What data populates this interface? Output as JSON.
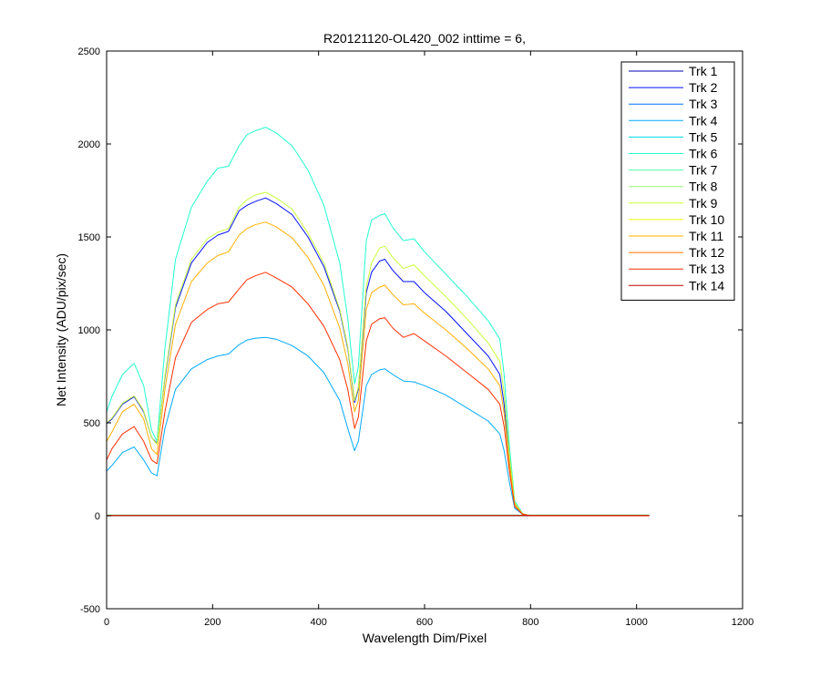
{
  "chart_data": {
    "type": "line",
    "title": "R20121120-OL420_002 inttime = 6,",
    "xlabel": "Wavelength Dim/Pixel",
    "ylabel": "Net Intensity (ADU/pix/sec)",
    "xlim": [
      0,
      1200
    ],
    "ylim": [
      -500,
      2500
    ],
    "xticks": [
      0,
      200,
      400,
      600,
      800,
      1000,
      1200
    ],
    "yticks": [
      -500,
      0,
      500,
      1000,
      1500,
      2000,
      2500
    ],
    "grid": false,
    "legend_position": "top-right",
    "series": [
      {
        "name": "Trk 1",
        "color": "#0000b8",
        "x": [
          0,
          1024
        ],
        "y": [
          0,
          0
        ]
      },
      {
        "name": "Trk 2",
        "color": "#0010ff",
        "x": [
          0,
          10,
          30,
          52,
          70,
          85,
          95,
          110,
          130,
          160,
          190,
          210,
          230,
          250,
          265,
          280,
          300,
          320,
          350,
          380,
          410,
          440,
          455,
          468,
          475,
          490,
          500,
          515,
          525,
          540,
          560,
          580,
          600,
          640,
          680,
          720,
          742,
          750,
          760,
          770,
          785,
          800,
          1024
        ],
        "y": [
          495,
          520,
          600,
          640,
          560,
          420,
          390,
          740,
          1120,
          1360,
          1470,
          1510,
          1530,
          1640,
          1670,
          1690,
          1710,
          1680,
          1620,
          1500,
          1340,
          1100,
          900,
          610,
          680,
          1200,
          1310,
          1370,
          1380,
          1320,
          1260,
          1260,
          1200,
          1100,
          980,
          860,
          760,
          600,
          300,
          60,
          10,
          0,
          0
        ]
      },
      {
        "name": "Trk 3",
        "color": "#0070ff",
        "x": [
          0,
          1024
        ],
        "y": [
          2,
          2
        ]
      },
      {
        "name": "Trk 4",
        "color": "#00aaff",
        "x": [
          0,
          10,
          30,
          52,
          70,
          85,
          95,
          110,
          130,
          160,
          190,
          210,
          230,
          250,
          265,
          280,
          300,
          320,
          350,
          380,
          410,
          440,
          455,
          468,
          475,
          490,
          500,
          515,
          525,
          540,
          560,
          580,
          600,
          640,
          680,
          720,
          742,
          750,
          760,
          770,
          785,
          800,
          1024
        ],
        "y": [
          240,
          270,
          340,
          370,
          300,
          230,
          215,
          470,
          680,
          790,
          840,
          860,
          870,
          920,
          945,
          955,
          960,
          950,
          915,
          860,
          770,
          620,
          470,
          350,
          400,
          700,
          760,
          785,
          790,
          760,
          725,
          720,
          700,
          650,
          580,
          510,
          440,
          350,
          180,
          40,
          8,
          0,
          0
        ]
      },
      {
        "name": "Trk 5",
        "color": "#00d8e8",
        "x": [
          0,
          1024
        ],
        "y": [
          3,
          3
        ]
      },
      {
        "name": "Trk 6",
        "color": "#20ffd0",
        "x": [
          0,
          10,
          30,
          52,
          70,
          85,
          95,
          110,
          130,
          160,
          190,
          210,
          230,
          250,
          265,
          280,
          300,
          320,
          350,
          380,
          410,
          440,
          455,
          468,
          475,
          490,
          500,
          515,
          525,
          540,
          560,
          580,
          600,
          640,
          680,
          720,
          742,
          750,
          760,
          770,
          785,
          800,
          1024
        ],
        "y": [
          560,
          640,
          760,
          820,
          700,
          460,
          400,
          900,
          1380,
          1660,
          1800,
          1870,
          1880,
          1990,
          2050,
          2070,
          2090,
          2060,
          1990,
          1860,
          1670,
          1360,
          1060,
          710,
          800,
          1480,
          1590,
          1615,
          1625,
          1550,
          1480,
          1490,
          1420,
          1300,
          1180,
          1050,
          950,
          760,
          380,
          80,
          12,
          0,
          0
        ]
      },
      {
        "name": "Trk 7",
        "color": "#50ffa8",
        "x": [
          0,
          1024
        ],
        "y": [
          4,
          4
        ]
      },
      {
        "name": "Trk 8",
        "color": "#90ff70",
        "x": [
          0,
          1024
        ],
        "y": [
          3,
          3
        ]
      },
      {
        "name": "Trk 9",
        "color": "#c8ff38",
        "x": [
          0,
          10,
          30,
          52,
          70,
          85,
          95,
          110,
          130,
          160,
          190,
          210,
          230,
          250,
          265,
          280,
          300,
          320,
          350,
          380,
          410,
          440,
          455,
          468,
          475,
          490,
          500,
          515,
          525,
          540,
          560,
          580,
          600,
          640,
          680,
          720,
          742,
          750,
          760,
          770,
          785,
          800,
          1024
        ],
        "y": [
          500,
          525,
          605,
          645,
          565,
          420,
          385,
          750,
          1135,
          1380,
          1490,
          1525,
          1545,
          1660,
          1700,
          1725,
          1740,
          1710,
          1650,
          1520,
          1360,
          1110,
          910,
          620,
          690,
          1230,
          1360,
          1440,
          1450,
          1390,
          1330,
          1350,
          1290,
          1180,
          1060,
          930,
          830,
          660,
          330,
          70,
          10,
          0,
          0
        ]
      },
      {
        "name": "Trk 10",
        "color": "#f0ff00",
        "x": [
          0,
          1024
        ],
        "y": [
          2,
          2
        ]
      },
      {
        "name": "Trk 11",
        "color": "#ffb000",
        "x": [
          0,
          10,
          30,
          52,
          70,
          85,
          95,
          110,
          130,
          160,
          190,
          210,
          230,
          250,
          265,
          280,
          300,
          320,
          350,
          380,
          410,
          440,
          455,
          468,
          475,
          490,
          500,
          515,
          525,
          540,
          560,
          580,
          600,
          640,
          680,
          720,
          742,
          750,
          760,
          770,
          785,
          800,
          1024
        ],
        "y": [
          400,
          450,
          560,
          600,
          520,
          360,
          330,
          680,
          1030,
          1260,
          1360,
          1400,
          1420,
          1510,
          1545,
          1565,
          1580,
          1555,
          1495,
          1390,
          1240,
          1010,
          820,
          560,
          620,
          1110,
          1200,
          1230,
          1240,
          1190,
          1135,
          1140,
          1090,
          1000,
          900,
          790,
          700,
          550,
          280,
          60,
          10,
          0,
          0
        ]
      },
      {
        "name": "Trk 12",
        "color": "#ff7000",
        "x": [
          0,
          1024
        ],
        "y": [
          2,
          2
        ]
      },
      {
        "name": "Trk 13",
        "color": "#ff3000",
        "x": [
          0,
          10,
          30,
          52,
          70,
          85,
          95,
          110,
          130,
          160,
          190,
          210,
          230,
          250,
          265,
          280,
          300,
          320,
          350,
          380,
          410,
          440,
          455,
          468,
          475,
          490,
          500,
          515,
          525,
          540,
          560,
          580,
          600,
          640,
          680,
          720,
          742,
          750,
          760,
          770,
          785,
          800,
          1024
        ],
        "y": [
          300,
          360,
          440,
          480,
          400,
          300,
          280,
          560,
          850,
          1040,
          1110,
          1140,
          1150,
          1220,
          1270,
          1290,
          1310,
          1280,
          1230,
          1140,
          1020,
          840,
          680,
          470,
          530,
          940,
          1030,
          1060,
          1065,
          1010,
          960,
          980,
          940,
          860,
          770,
          680,
          600,
          480,
          240,
          50,
          8,
          0,
          0
        ]
      },
      {
        "name": "Trk 14",
        "color": "#c00000",
        "x": [
          0,
          1024
        ],
        "y": [
          1,
          1
        ]
      }
    ]
  }
}
